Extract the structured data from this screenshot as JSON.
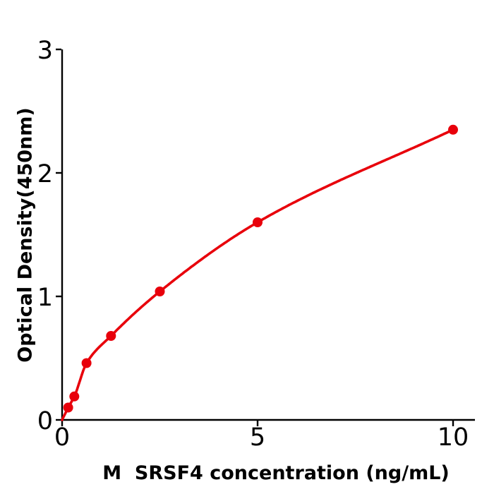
{
  "figure": {
    "background": "#ffffff"
  },
  "chart_data": {
    "type": "scatter",
    "title": "",
    "xlabel": "M  SRSF4 concentration (ng/mL)",
    "ylabel": "Optical Density(450nm)",
    "x": [
      0.156,
      0.313,
      0.625,
      1.25,
      2.5,
      5,
      10
    ],
    "y": [
      0.1,
      0.19,
      0.46,
      0.68,
      1.04,
      1.6,
      2.35
    ],
    "curve_start": {
      "x": 0,
      "y": 0
    },
    "xticks": [
      0,
      5,
      10
    ],
    "yticks": [
      0,
      1,
      2,
      3
    ],
    "xlim": [
      0,
      10.6
    ],
    "ylim": [
      0,
      3.02
    ],
    "grid": false,
    "line_color": "#e8000b",
    "marker_color": "#e8000b",
    "axis_color": "#000000"
  }
}
